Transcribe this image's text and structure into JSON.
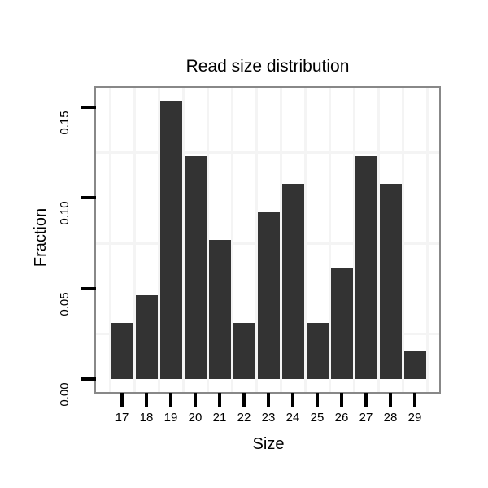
{
  "figure": {
    "title": "Read size distribution",
    "background_color": "#ffffff"
  },
  "chart_data": {
    "type": "bar",
    "title": "Read size distribution",
    "xlabel": "Size",
    "ylabel": "Fraction",
    "categories": [
      17,
      18,
      19,
      20,
      21,
      22,
      23,
      24,
      25,
      26,
      27,
      28,
      29
    ],
    "values": [
      0.0308,
      0.0462,
      0.1538,
      0.1231,
      0.0769,
      0.0308,
      0.0923,
      0.1077,
      0.0308,
      0.0615,
      0.1231,
      0.1077,
      0.0154
    ],
    "x_tick_labels": [
      "17",
      "18",
      "19",
      "20",
      "21",
      "22",
      "23",
      "24",
      "25",
      "26",
      "27",
      "28",
      "29"
    ],
    "y_ticks": [
      0.0,
      0.05,
      0.1,
      0.15
    ],
    "y_tick_labels": [
      "0.00",
      "0.05",
      "0.10",
      "0.15"
    ],
    "y_minor_gridlines": [
      0.025,
      0.075,
      0.125
    ],
    "ylim": [
      -0.007,
      0.161
    ],
    "grid": "light minor gridlines only, vertical lines between category slots",
    "legend": "none",
    "bar_color": "#333333",
    "panel_border_color": "#888888",
    "gridline_color": "#f4f4f4",
    "tick_color": "#000000",
    "text_color": "#000000"
  }
}
